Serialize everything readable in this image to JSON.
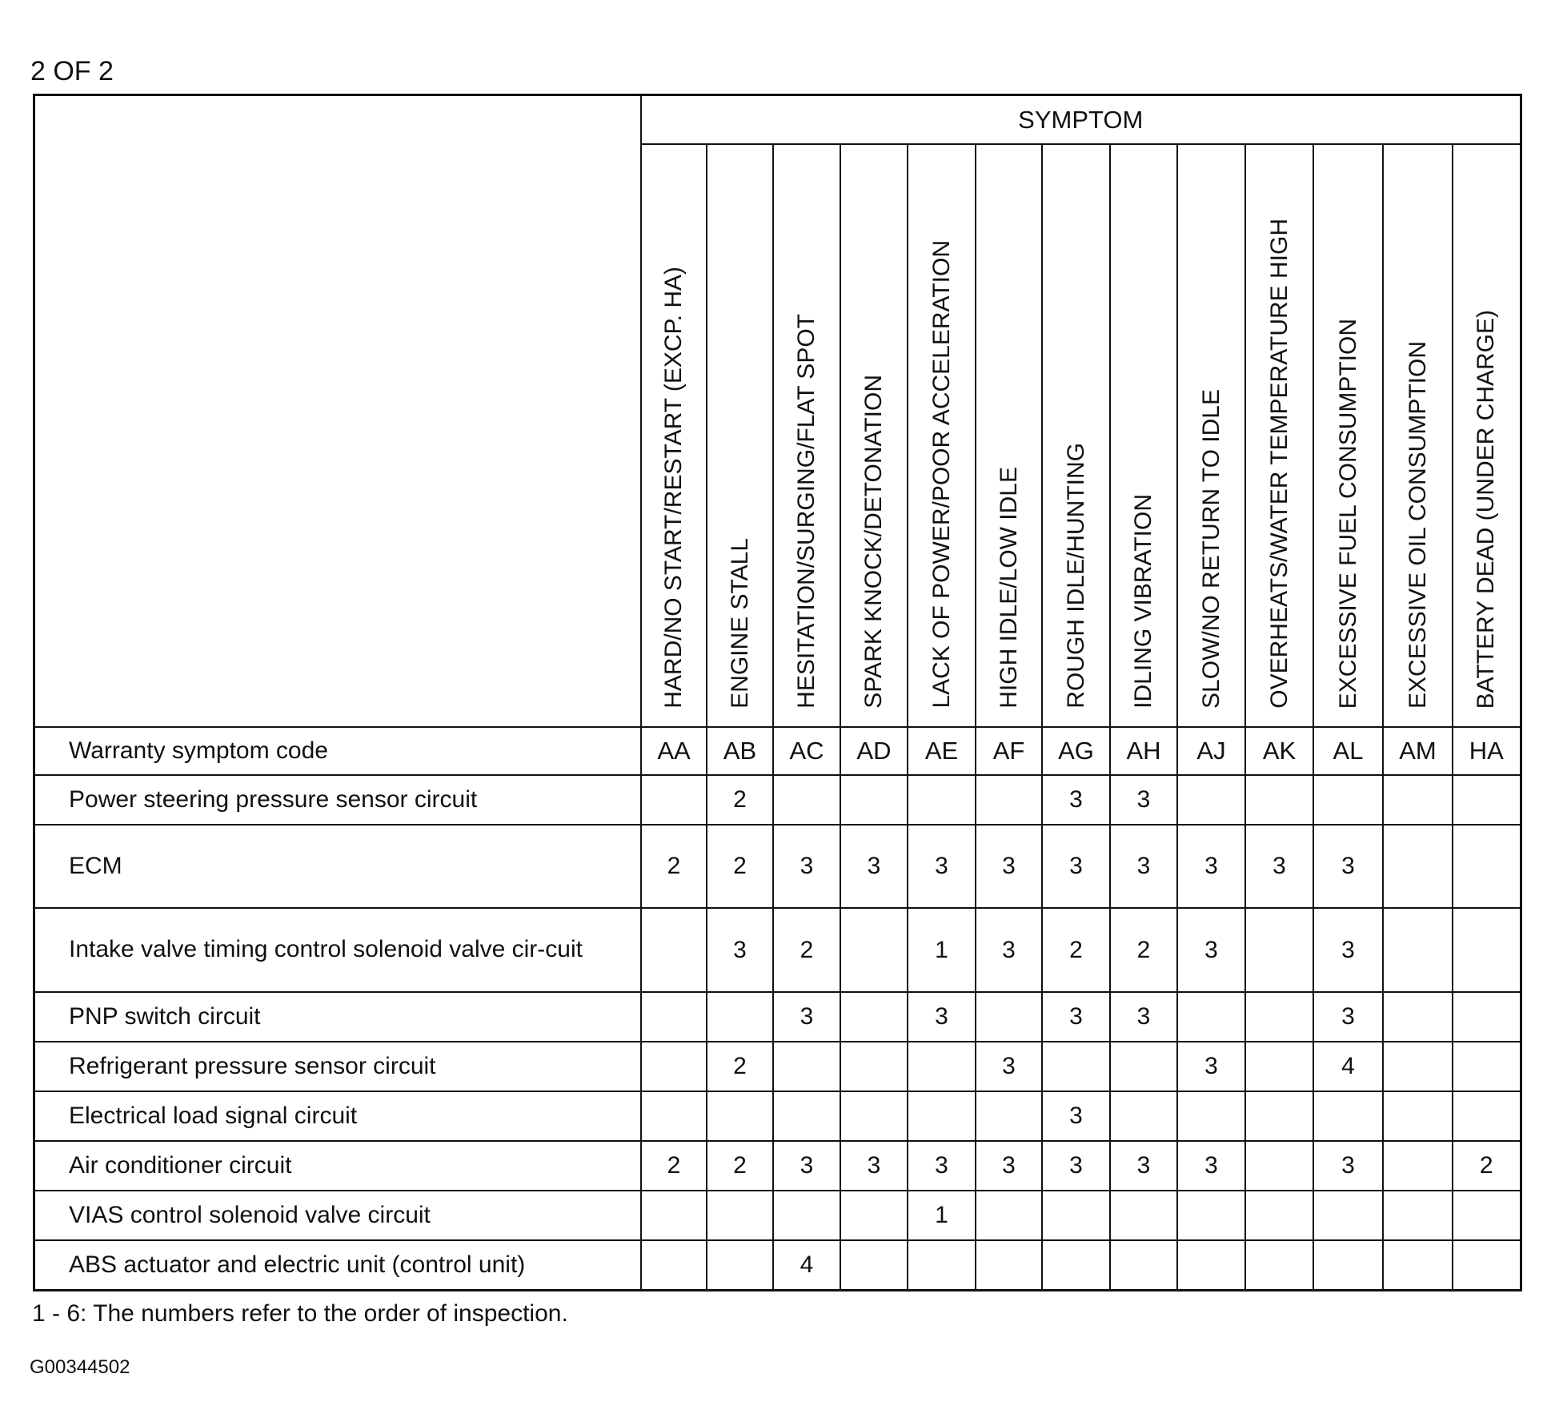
{
  "page_label": "2 OF 2",
  "header": {
    "group_title": "SYMPTOM"
  },
  "columns": [
    {
      "symptom": "HARD/NO START/RESTART (EXCP. HA)",
      "code": "AA"
    },
    {
      "symptom": "ENGINE STALL",
      "code": "AB"
    },
    {
      "symptom": "HESITATION/SURGING/FLAT SPOT",
      "code": "AC"
    },
    {
      "symptom": "SPARK KNOCK/DETONATION",
      "code": "AD"
    },
    {
      "symptom": "LACK OF POWER/POOR ACCELERATION",
      "code": "AE"
    },
    {
      "symptom": "HIGH IDLE/LOW IDLE",
      "code": "AF"
    },
    {
      "symptom": "ROUGH IDLE/HUNTING",
      "code": "AG"
    },
    {
      "symptom": "IDLING VIBRATION",
      "code": "AH"
    },
    {
      "symptom": "SLOW/NO RETURN TO IDLE",
      "code": "AJ"
    },
    {
      "symptom": "OVERHEATS/WATER TEMPERATURE HIGH",
      "code": "AK"
    },
    {
      "symptom": "EXCESSIVE FUEL CONSUMPTION",
      "code": "AL"
    },
    {
      "symptom": "EXCESSIVE OIL CONSUMPTION",
      "code": "AM"
    },
    {
      "symptom": "BATTERY DEAD (UNDER CHARGE)",
      "code": "HA"
    }
  ],
  "code_row_label": "Warranty symptom code",
  "rows": [
    {
      "label": "Power steering pressure sensor circuit",
      "values": [
        "",
        "2",
        "",
        "",
        "",
        "",
        "3",
        "3",
        "",
        "",
        "",
        "",
        ""
      ]
    },
    {
      "label": "ECM",
      "values": [
        "2",
        "2",
        "3",
        "3",
        "3",
        "3",
        "3",
        "3",
        "3",
        "3",
        "3",
        "",
        ""
      ]
    },
    {
      "label": "Intake valve timing control solenoid valve cir-cuit",
      "values": [
        "",
        "3",
        "2",
        "",
        "1",
        "3",
        "2",
        "2",
        "3",
        "",
        "3",
        "",
        ""
      ]
    },
    {
      "label": "PNP switch circuit",
      "values": [
        "",
        "",
        "3",
        "",
        "3",
        "",
        "3",
        "3",
        "",
        "",
        "3",
        "",
        ""
      ]
    },
    {
      "label": "Refrigerant pressure sensor circuit",
      "values": [
        "",
        "2",
        "",
        "",
        "",
        "3",
        "",
        "",
        "3",
        "",
        "4",
        "",
        ""
      ]
    },
    {
      "label": "Electrical load signal circuit",
      "values": [
        "",
        "",
        "",
        "",
        "",
        "",
        "3",
        "",
        "",
        "",
        "",
        "",
        ""
      ]
    },
    {
      "label": "Air conditioner circuit",
      "values": [
        "2",
        "2",
        "3",
        "3",
        "3",
        "3",
        "3",
        "3",
        "3",
        "",
        "3",
        "",
        "2"
      ]
    },
    {
      "label": "VIAS control solenoid valve circuit",
      "values": [
        "",
        "",
        "",
        "",
        "1",
        "",
        "",
        "",
        "",
        "",
        "",
        "",
        ""
      ]
    },
    {
      "label": "ABS actuator and electric unit (control unit)",
      "values": [
        "",
        "",
        "4",
        "",
        "",
        "",
        "",
        "",
        "",
        "",
        "",
        "",
        ""
      ]
    }
  ],
  "footnote": "1 - 6: The numbers refer to the order of inspection.",
  "figure_id": "G00344502"
}
